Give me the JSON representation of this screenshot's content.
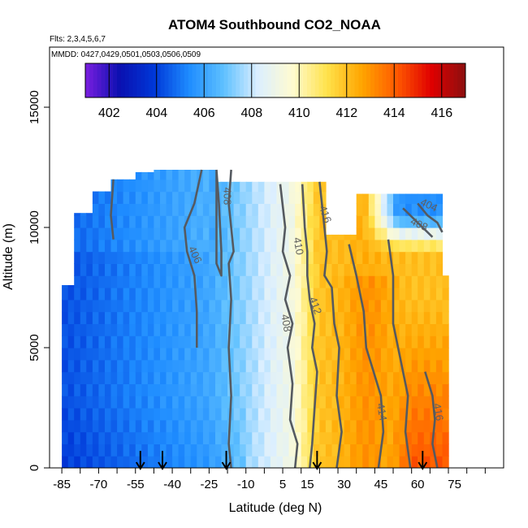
{
  "chart_data": {
    "type": "heatmap",
    "title": "ATOM4 Southbound CO2_NOAA",
    "subtitle_flights": "Flts: 2,3,4,5,6,7",
    "subtitle_dates": "MMDD: 0427,0429,0501,0503,0506,0509",
    "xlabel": "Latitude (deg N)",
    "ylabel": "Altitude (m)",
    "xlim": [
      -90,
      95
    ],
    "ylim": [
      0,
      17500
    ],
    "x_ticks": [
      -85,
      -70,
      -55,
      -40,
      -25,
      -10,
      5,
      15,
      30,
      45,
      60,
      75
    ],
    "x_tick_labels": [
      "-85",
      "-70",
      "-55",
      "-40",
      "-25",
      "-10",
      "5",
      "15",
      "30",
      "45",
      "60",
      "75"
    ],
    "y_ticks": [
      0,
      5000,
      10000,
      15000
    ],
    "y_tick_labels": [
      "0",
      "5000",
      "10000",
      "15000"
    ],
    "colorbar": {
      "ticks": [
        402,
        404,
        406,
        408,
        410,
        412,
        414,
        416
      ],
      "tick_labels": [
        "402",
        "404",
        "406",
        "408",
        "410",
        "412",
        "414",
        "416"
      ],
      "range": [
        401,
        417
      ],
      "colors": [
        "#7a1ee0",
        "#0a10b0",
        "#0038d8",
        "#1e8cff",
        "#5ec0ff",
        "#dcefff",
        "#fffbd0",
        "#ffe24a",
        "#ffa500",
        "#ff5a00",
        "#e00000",
        "#8c0f0f"
      ]
    },
    "contour_labels": [
      {
        "text": "408",
        "lat": -19,
        "alt": 11300,
        "rot": 90
      },
      {
        "text": "406",
        "lat": -32,
        "alt": 8800,
        "rot": 65
      },
      {
        "text": "410",
        "lat": 10,
        "alt": 9200,
        "rot": 80
      },
      {
        "text": "408",
        "lat": 5,
        "alt": 6000,
        "rot": 80
      },
      {
        "text": "412",
        "lat": 17,
        "alt": 6700,
        "rot": 70
      },
      {
        "text": "416",
        "lat": 21,
        "alt": 10500,
        "rot": 70
      },
      {
        "text": "408",
        "lat": 60,
        "alt": 10000,
        "rot": 25
      },
      {
        "text": "404",
        "lat": 64,
        "alt": 10800,
        "rot": 25
      },
      {
        "text": "414",
        "lat": 44,
        "alt": 2300,
        "rot": 80
      },
      {
        "text": "416",
        "lat": 67,
        "alt": 2300,
        "rot": 80
      }
    ],
    "profile_arrows_lat": [
      -53,
      -44,
      -18,
      19,
      62
    ]
  }
}
